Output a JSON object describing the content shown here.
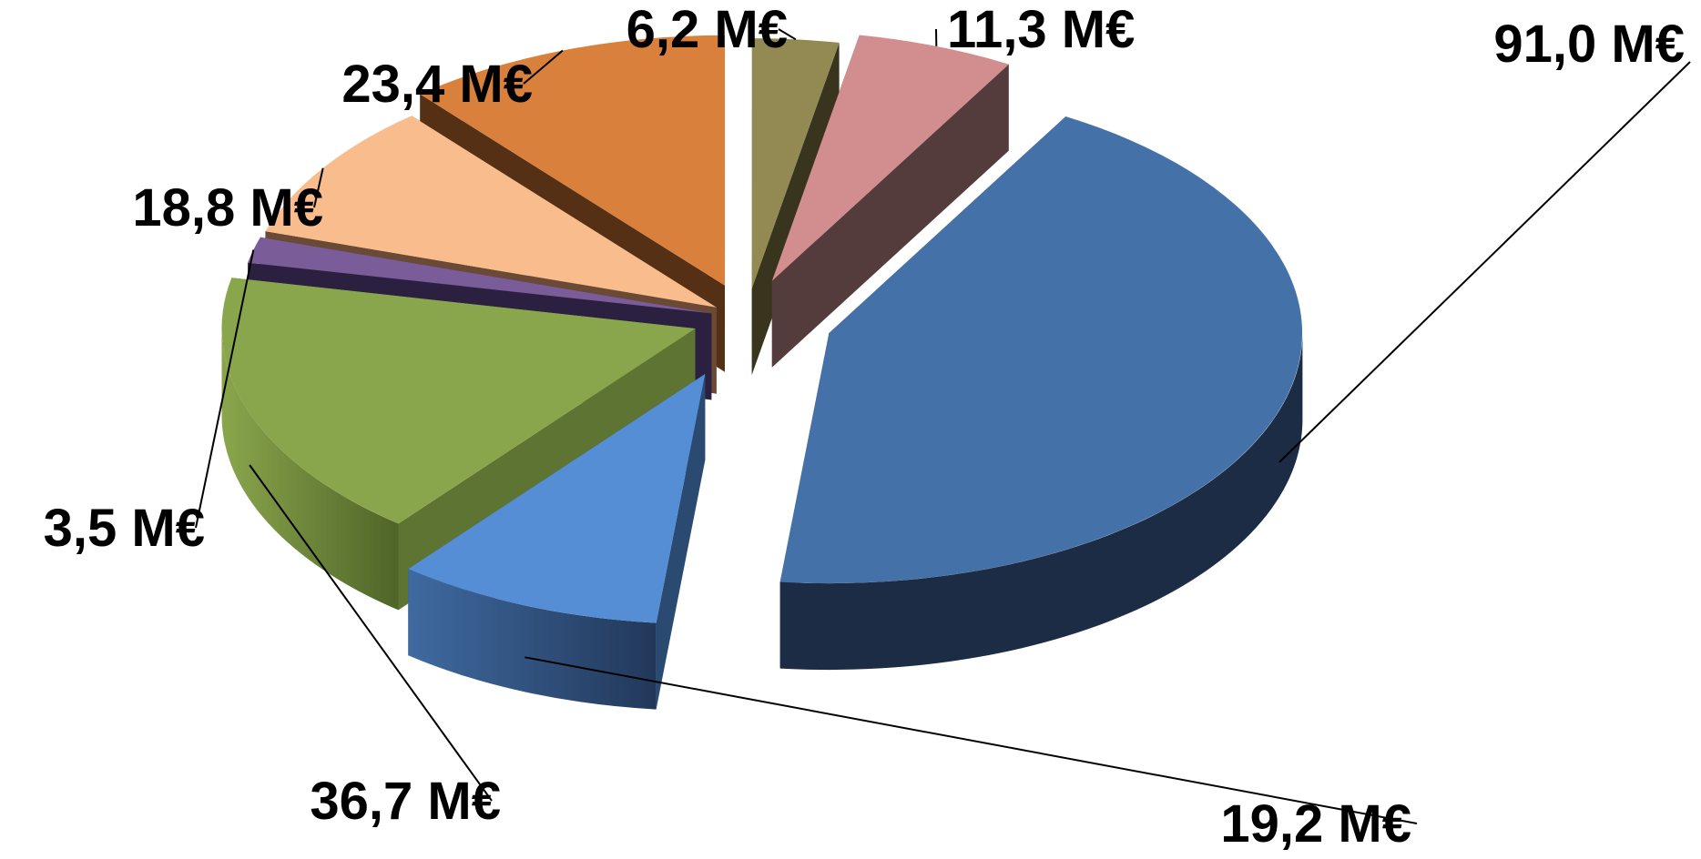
{
  "chart_data": {
    "type": "pie",
    "style": "3d-exploded",
    "unit": "M€",
    "legend": "none",
    "grid": false,
    "title": "",
    "slices": [
      {
        "value": 91.0,
        "label": "91,0 M€",
        "color": "#4472a8",
        "side_color": "#1c2c45"
      },
      {
        "value": 19.2,
        "label": "19,2 M€",
        "color": "#558ed5",
        "side_color": "#2a4a72"
      },
      {
        "value": 36.7,
        "label": "36,7 M€",
        "color": "#8aa64c",
        "side_color": "#5e7433"
      },
      {
        "value": 3.5,
        "label": "3,5 M€",
        "color": "#7a5c98",
        "side_color": "#2c2040"
      },
      {
        "value": 18.8,
        "label": "18,8 M€",
        "color": "#f8bc8d",
        "side_color": "#6a4a35"
      },
      {
        "value": 23.4,
        "label": "23,4 M€",
        "color": "#d9803c",
        "side_color": "#553014"
      },
      {
        "value": 6.2,
        "label": "6,2 M€",
        "color": "#938953",
        "side_color": "#38341e"
      },
      {
        "value": 11.3,
        "label": "11,3 M€",
        "color": "#d28e8e",
        "side_color": "#553c3c"
      }
    ]
  }
}
